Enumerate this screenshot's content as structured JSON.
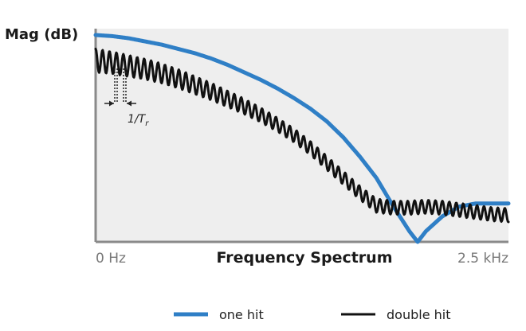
{
  "chart_data": {
    "type": "line",
    "ylabel": "Mag (dB)",
    "xlabel": "Frequency Spectrum",
    "x_tick_labels": [
      "0 Hz",
      "2.5 kHz"
    ],
    "xlim": [
      0,
      2.5
    ],
    "x_unit": "kHz",
    "y_ticks_shown": false,
    "grid": false,
    "legend_position": "bottom",
    "annotation": {
      "text": "1/T",
      "subscript": "r",
      "meaning": "ripple spacing"
    },
    "series": [
      {
        "name": "one hit",
        "color": "#2f7fc6",
        "shape": "smooth",
        "x": [
          0,
          0.1,
          0.2,
          0.3,
          0.4,
          0.5,
          0.6,
          0.7,
          0.8,
          0.9,
          1.0,
          1.1,
          1.2,
          1.3,
          1.4,
          1.5,
          1.6,
          1.7,
          1.8,
          1.9,
          1.95,
          2.0,
          2.1,
          2.2,
          2.3,
          2.4,
          2.5
        ],
        "values": [
          0.97,
          0.965,
          0.955,
          0.94,
          0.925,
          0.905,
          0.885,
          0.86,
          0.83,
          0.795,
          0.76,
          0.72,
          0.675,
          0.625,
          0.565,
          0.49,
          0.4,
          0.3,
          0.17,
          0.05,
          0.0,
          0.05,
          0.12,
          0.165,
          0.18,
          0.18,
          0.18
        ]
      },
      {
        "name": "double hit",
        "color": "#111111",
        "shape": "rippled",
        "ripple_period": 0.042,
        "x": [
          0,
          0.1,
          0.2,
          0.3,
          0.4,
          0.5,
          0.6,
          0.7,
          0.8,
          0.9,
          1.0,
          1.1,
          1.2,
          1.3,
          1.4,
          1.5,
          1.6,
          1.7,
          1.8,
          1.9,
          2.0,
          2.1,
          2.2,
          2.3,
          2.4,
          2.5
        ],
        "values": [
          0.85,
          0.84,
          0.825,
          0.81,
          0.79,
          0.765,
          0.735,
          0.705,
          0.67,
          0.635,
          0.595,
          0.55,
          0.5,
          0.44,
          0.37,
          0.3,
          0.23,
          0.17,
          0.16,
          0.16,
          0.165,
          0.16,
          0.15,
          0.14,
          0.13,
          0.125
        ],
        "ripple_amplitude": [
          0.055,
          0.052,
          0.05,
          0.048,
          0.046,
          0.044,
          0.042,
          0.04,
          0.038,
          0.036,
          0.034,
          0.032,
          0.032,
          0.032,
          0.032,
          0.032,
          0.032,
          0.032,
          0.032,
          0.032,
          0.032,
          0.032,
          0.032,
          0.032,
          0.032,
          0.032
        ]
      }
    ]
  },
  "legend": {
    "one_hit": "one hit",
    "double_hit": "double hit"
  }
}
